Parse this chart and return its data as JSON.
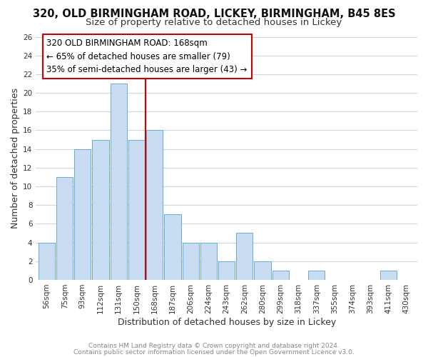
{
  "title": "320, OLD BIRMINGHAM ROAD, LICKEY, BIRMINGHAM, B45 8ES",
  "subtitle": "Size of property relative to detached houses in Lickey",
  "xlabel": "Distribution of detached houses by size in Lickey",
  "ylabel": "Number of detached properties",
  "bar_labels": [
    "56sqm",
    "75sqm",
    "93sqm",
    "112sqm",
    "131sqm",
    "150sqm",
    "168sqm",
    "187sqm",
    "206sqm",
    "224sqm",
    "243sqm",
    "262sqm",
    "280sqm",
    "299sqm",
    "318sqm",
    "337sqm",
    "355sqm",
    "374sqm",
    "393sqm",
    "411sqm",
    "430sqm"
  ],
  "bar_values": [
    4,
    11,
    14,
    15,
    21,
    15,
    16,
    7,
    4,
    4,
    2,
    5,
    2,
    1,
    0,
    1,
    0,
    0,
    0,
    1,
    0
  ],
  "bar_color": "#c9ddf2",
  "bar_edge_color": "#6aadd5",
  "highlight_bar_index": 6,
  "highlight_color": "#cc0000",
  "vline_color": "#cc0000",
  "annotation_title": "320 OLD BIRMINGHAM ROAD: 168sqm",
  "annotation_line1": "← 65% of detached houses are smaller (79)",
  "annotation_line2": "35% of semi-detached houses are larger (43) →",
  "annotation_box_color": "#ffffff",
  "annotation_box_edge": "#cc0000",
  "ylim": [
    0,
    26
  ],
  "yticks": [
    0,
    2,
    4,
    6,
    8,
    10,
    12,
    14,
    16,
    18,
    20,
    22,
    24,
    26
  ],
  "footer1": "Contains HM Land Registry data © Crown copyright and database right 2024.",
  "footer2": "Contains public sector information licensed under the Open Government Licence v3.0.",
  "bg_color": "#ffffff",
  "grid_color": "#c8d8e8",
  "title_fontsize": 10.5,
  "subtitle_fontsize": 9.5,
  "axis_label_fontsize": 9,
  "tick_fontsize": 7.5,
  "annotation_fontsize": 8.5,
  "footer_fontsize": 6.5
}
